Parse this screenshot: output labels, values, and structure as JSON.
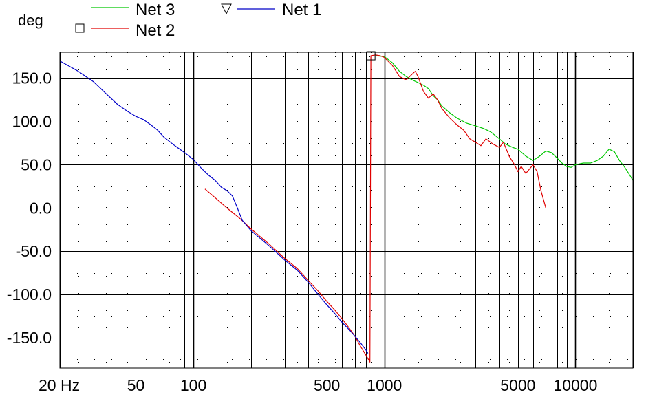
{
  "chart_data": {
    "type": "line",
    "ylabel": "deg",
    "xscale": "log",
    "xlim": [
      20,
      20000
    ],
    "ylim": [
      -185,
      180
    ],
    "grid": true,
    "legend_position": "top",
    "x_tick_labels": [
      {
        "value": 20,
        "label": "20 Hz"
      },
      {
        "value": 50,
        "label": "50"
      },
      {
        "value": 100,
        "label": "100"
      },
      {
        "value": 500,
        "label": "500"
      },
      {
        "value": 1000,
        "label": "1000"
      },
      {
        "value": 5000,
        "label": "5000"
      },
      {
        "value": 10000,
        "label": "10000"
      }
    ],
    "y_tick_labels": [
      {
        "value": 150,
        "label": "150.0"
      },
      {
        "value": 100,
        "label": "100.0"
      },
      {
        "value": 50,
        "label": "50.0"
      },
      {
        "value": 0,
        "label": "0.0"
      },
      {
        "value": -50,
        "label": "-50.0"
      },
      {
        "value": -100,
        "label": "-100.0"
      },
      {
        "value": -150,
        "label": "-150.0"
      }
    ],
    "series": [
      {
        "name": "Net 3",
        "color": "#00c800",
        "points": [
          [
            900,
            176
          ],
          [
            1000,
            175
          ],
          [
            1100,
            168
          ],
          [
            1200,
            158
          ],
          [
            1300,
            152
          ],
          [
            1400,
            148
          ],
          [
            1500,
            145
          ],
          [
            1600,
            142
          ],
          [
            1700,
            138
          ],
          [
            1800,
            130
          ],
          [
            1900,
            125
          ],
          [
            2000,
            118
          ],
          [
            2200,
            110
          ],
          [
            2400,
            104
          ],
          [
            2700,
            98
          ],
          [
            3000,
            95
          ],
          [
            3300,
            92
          ],
          [
            3600,
            88
          ],
          [
            4000,
            80
          ],
          [
            4300,
            74
          ],
          [
            4700,
            70
          ],
          [
            5000,
            68
          ],
          [
            5500,
            60
          ],
          [
            6000,
            55
          ],
          [
            6500,
            60
          ],
          [
            7000,
            66
          ],
          [
            7500,
            64
          ],
          [
            8000,
            58
          ],
          [
            8500,
            52
          ],
          [
            9000,
            48
          ],
          [
            9500,
            47
          ],
          [
            10000,
            50
          ],
          [
            11000,
            52
          ],
          [
            12000,
            52
          ],
          [
            13000,
            55
          ],
          [
            14000,
            60
          ],
          [
            15000,
            68
          ],
          [
            16000,
            65
          ],
          [
            17000,
            55
          ],
          [
            18000,
            48
          ],
          [
            19000,
            40
          ],
          [
            20000,
            32
          ]
        ]
      },
      {
        "name": "Net 2",
        "color": "#e00000",
        "points": [
          [
            115,
            22
          ],
          [
            130,
            12
          ],
          [
            150,
            0
          ],
          [
            175,
            -12
          ],
          [
            200,
            -24
          ],
          [
            250,
            -42
          ],
          [
            300,
            -58
          ],
          [
            350,
            -70
          ],
          [
            400,
            -84
          ],
          [
            450,
            -96
          ],
          [
            500,
            -108
          ],
          [
            550,
            -118
          ],
          [
            600,
            -128
          ],
          [
            650,
            -138
          ],
          [
            700,
            -148
          ],
          [
            750,
            -160
          ],
          [
            800,
            -170
          ],
          [
            840,
            -178
          ],
          [
            850,
            176
          ],
          [
            900,
            177
          ],
          [
            950,
            176
          ],
          [
            1000,
            174
          ],
          [
            1100,
            165
          ],
          [
            1200,
            152
          ],
          [
            1300,
            148
          ],
          [
            1400,
            155
          ],
          [
            1450,
            158
          ],
          [
            1500,
            152
          ],
          [
            1600,
            135
          ],
          [
            1700,
            127
          ],
          [
            1800,
            132
          ],
          [
            1900,
            125
          ],
          [
            2000,
            115
          ],
          [
            2200,
            104
          ],
          [
            2400,
            96
          ],
          [
            2600,
            90
          ],
          [
            2800,
            80
          ],
          [
            3000,
            76
          ],
          [
            3200,
            72
          ],
          [
            3400,
            80
          ],
          [
            3700,
            74
          ],
          [
            4000,
            70
          ],
          [
            4200,
            76
          ],
          [
            4500,
            60
          ],
          [
            4800,
            50
          ],
          [
            5000,
            42
          ],
          [
            5200,
            48
          ],
          [
            5500,
            40
          ],
          [
            6000,
            50
          ],
          [
            6300,
            42
          ],
          [
            6600,
            20
          ],
          [
            7000,
            0
          ]
        ]
      },
      {
        "name": "Net 1",
        "color": "#0000c8",
        "points": [
          [
            20,
            170
          ],
          [
            25,
            158
          ],
          [
            30,
            146
          ],
          [
            35,
            132
          ],
          [
            40,
            120
          ],
          [
            45,
            112
          ],
          [
            50,
            106
          ],
          [
            55,
            102
          ],
          [
            60,
            96
          ],
          [
            65,
            90
          ],
          [
            70,
            82
          ],
          [
            80,
            72
          ],
          [
            90,
            64
          ],
          [
            100,
            56
          ],
          [
            110,
            46
          ],
          [
            120,
            38
          ],
          [
            130,
            32
          ],
          [
            140,
            24
          ],
          [
            150,
            20
          ],
          [
            160,
            14
          ],
          [
            170,
            0
          ],
          [
            180,
            -14
          ],
          [
            200,
            -26
          ],
          [
            250,
            -44
          ],
          [
            300,
            -60
          ],
          [
            350,
            -72
          ],
          [
            400,
            -86
          ],
          [
            450,
            -100
          ],
          [
            500,
            -112
          ],
          [
            550,
            -122
          ],
          [
            600,
            -132
          ],
          [
            650,
            -140
          ],
          [
            700,
            -148
          ],
          [
            750,
            -156
          ],
          [
            800,
            -164
          ],
          [
            820,
            -168
          ]
        ]
      }
    ]
  }
}
